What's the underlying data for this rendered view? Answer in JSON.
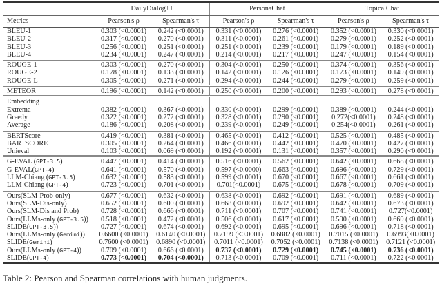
{
  "table": {
    "metrics_header": "Metrics",
    "datasets": [
      "DailyDialog++",
      "PersonaChat",
      "TopicalChat"
    ],
    "subheaders": [
      "Pearson's ρ",
      "Spearman's τ"
    ],
    "groups": [
      [
        {
          "label": [
            {
              "t": "BLEU-1"
            }
          ],
          "cells": [
            "0.303 (<0.0001)",
            "0.242 (<0.0001)",
            "0.331 (<0.0001)",
            "0.276 (<0.0001)",
            "0.352 (<0.0001)",
            "0.330 (<0.0001)"
          ]
        },
        {
          "label": [
            {
              "t": "BLEU-2"
            }
          ],
          "cells": [
            "0.317 (<0.0001)",
            "0.270 (<0.0001)",
            "0.311 (<0.0001)",
            "0.261 (<0.0001)",
            "0.279 (<0.0001)",
            "0.252 (<0.0001)"
          ]
        },
        {
          "label": [
            {
              "t": "BLEU-3"
            }
          ],
          "cells": [
            "0.256 (<0.0001)",
            "0.251 (<0.0001)",
            "0.251 (<0.0001)",
            "0.239 (<0.0001)",
            "0.179 (<0.0001)",
            "0.189 (<0.0001)"
          ]
        },
        {
          "label": [
            {
              "t": "BLEU-4"
            }
          ],
          "cells": [
            "0.234 (<0.0001)",
            "0.247 (<0.0001)",
            "0.214 (<0.0001)",
            "0.217 (<0.0001)",
            "0.247 (<0.0001)",
            "0.154 (<0.0001)"
          ]
        }
      ],
      [
        {
          "label": [
            {
              "t": "ROUGE-1"
            }
          ],
          "cells": [
            "0.303 (<0.0001)",
            "0.270 (<0.0001)",
            "0.304 (<0.0001)",
            "0.250 (<0.0001)",
            "0.374 (<0.0001)",
            "0.356 (<0.0001)"
          ]
        },
        {
          "label": [
            {
              "t": "ROUGE-2"
            }
          ],
          "cells": [
            "0.178 (<0.0001)",
            "0.133 (<0.0001)",
            "0.142 (<0.0001)",
            "0.126 (<0.0001)",
            "0.173 (<0.0001)",
            "0.149 (<0.0001)"
          ]
        },
        {
          "label": [
            {
              "t": "ROUGE-L"
            }
          ],
          "cells": [
            "0.305 (<0.0001)",
            "0.271 (<0.0001)",
            "0.294 (<0.0001)",
            "0.244 (<0.0001)",
            "0.279 (<0.0001)",
            "0.259 (<0.0001)"
          ]
        }
      ],
      [
        {
          "label": [
            {
              "t": "METEOR"
            }
          ],
          "cells": [
            "0.196 (<0.0001)",
            "0.142 (<0.0001)",
            "0.250 (<0.0001)",
            "0.200 (<0.0001)",
            "0.293 (<0.0001)",
            "0.278 (<0.0001)"
          ]
        }
      ],
      [
        {
          "label": [
            {
              "t": "Embedding"
            }
          ],
          "cells": [
            "",
            "",
            "",
            "",
            "",
            ""
          ]
        },
        {
          "label": [
            {
              "t": "Extrema"
            }
          ],
          "cells": [
            "0.382 (<0.0001)",
            "0.367 (<0.0001)",
            "0.330 (<0.0001)",
            "0.299 (<0.0001)",
            "0.389 (<0.0001)",
            "0.244 (<0.0001)"
          ]
        },
        {
          "label": [
            {
              "t": "Greedy"
            }
          ],
          "cells": [
            "0.322 (<0.0001)",
            "0.272 (<0.0001)",
            "0.328 (<0.0001)",
            "0.290 (<0.0001)",
            "0.272(<0.0001)",
            "0.248 (<0.0001)"
          ]
        },
        {
          "label": [
            {
              "t": "Average"
            }
          ],
          "cells": [
            "0.186 (<0.0001)",
            "0.208 (<0.0001)",
            "0.239 (<0.0001)",
            "0.249 (<0.0001)",
            "0.254(<0.0001)",
            "0.261 (<0.0001)"
          ]
        }
      ],
      [
        {
          "label": [
            {
              "t": "BERTScore"
            }
          ],
          "cells": [
            "0.419 (<0.0001)",
            "0.381 (<0.0001)",
            "0.465 (<0.0001)",
            "0.412 (<0.0001)",
            "0.525 (<0.0001)",
            "0.485 (<0.0001)"
          ]
        },
        {
          "label": [
            {
              "t": "BARTSCORE"
            }
          ],
          "cells": [
            "0.305 (<0.0001)",
            "0.264 (<0.0001)",
            "0.466 (<0.0001)",
            "0.442 (<0.0001)",
            "0.470 (<0.0001)",
            "0.427 (<0.0001)"
          ]
        },
        {
          "label": [
            {
              "t": "Unieval"
            }
          ],
          "cells": [
            "0.103 (<0.0001)",
            "0.069 (<0.0001)",
            "0.192 (<0.0001)",
            "0.131 (<0.0001)",
            "0.357 (<0.0001)",
            "0.290 (<0.0001)"
          ]
        }
      ],
      [
        {
          "label": [
            {
              "t": "G-EVAL ("
            },
            {
              "t": "GPT-3.5",
              "mono": true
            },
            {
              "t": ")"
            }
          ],
          "cells": [
            "0.447 (<0.0001)",
            "0.414 (<0.0001)",
            "0.516 (<0.0001)",
            "0.562 (<0.0001)",
            "0.642 (<0.0001)",
            "0.668 (<0.0001)"
          ]
        },
        {
          "label": [
            {
              "t": "G-EVAL("
            },
            {
              "t": "GPT-4",
              "mono": true
            },
            {
              "t": ")"
            }
          ],
          "cells": [
            "0.641 (<0.0001)",
            "0.570 (<0.0001)",
            "0.597 (<0.0000)",
            "0.663 (<0.0001)",
            "0.696 (<0.0001)",
            "0.729 (<0.0001)"
          ]
        },
        {
          "label": [
            {
              "t": "LLM-Chiang ("
            },
            {
              "t": "GPT-3.5",
              "mono": true
            },
            {
              "t": ")"
            }
          ],
          "cells": [
            "0.632 (<0.0001)",
            "0.583 (<0.0001)",
            "0.599 (<0.0001)",
            "0.670 (<0.0001)",
            "0.667 (<0.0001)",
            "0.661 (<0.0001)"
          ]
        },
        {
          "label": [
            {
              "t": "LLM-Chiang ("
            },
            {
              "t": "GPT-4",
              "mono": true
            },
            {
              "t": ")"
            }
          ],
          "cells": [
            "0.723 (<0.0001)",
            "0.701 (<0.0001)",
            "0.701(<0.0001)",
            "0.675 (<0.0001)",
            "0.678 (<0.0001)",
            "0.709 (<0.0001)"
          ]
        }
      ],
      [
        {
          "label": [
            {
              "t": "Ours(SLM-Prob-only)"
            }
          ],
          "cells": [
            "0.677 (<0.0001)",
            "0.632 (<0.0001)",
            "0.638 (<0.0001)",
            "0.692 (<0.0001)",
            "0.691 (<0.0001)",
            "0.689 (<0.0001)"
          ]
        },
        {
          "label": [
            {
              "t": "Ours(SLM-Dis-only)"
            }
          ],
          "cells": [
            "0.652 (<0.0001)",
            "0.600 (<0.0001)",
            "0.668 (<0.0001)",
            "0.692 (<0.0001)",
            "0.642 (<0.0001)",
            "0.673 (<0.0001)"
          ]
        },
        {
          "label": [
            {
              "t": "Ours(SLM-Dis and Prob)"
            }
          ],
          "cells": [
            "0.728 (<0.0001)",
            "0.666 (<0.0001)",
            "0.711 (<0.0001)",
            "0.707 (<0.0001)",
            "0.741 (<0.0001)",
            "0.727(<0.0001)"
          ]
        },
        {
          "label": [
            {
              "t": "Ours(LLMs-only ("
            },
            {
              "t": "GPT-3.5",
              "mono": true
            },
            {
              "t": "))"
            }
          ],
          "cells": [
            "0.518 (<0.0001)",
            "0.472 (<0.0001)",
            "0.506 (<0.0001)",
            "0.617 (<0.0001)",
            "0.590 (<0.0001)",
            "0.669 (<0.0001)"
          ]
        },
        {
          "label": [
            {
              "t": "SLIDE("
            },
            {
              "t": "GPT-3.5",
              "mono": true
            },
            {
              "t": "))"
            }
          ],
          "cells": [
            "0.727 (<0.0001)",
            "0.674 (<0.0001)",
            "0.692 (<0.0001)",
            "0.695 (<0.0001)",
            "0.696 (<0.0001)",
            "0.718 (<0.0001)"
          ]
        },
        {
          "label": [
            {
              "t": "Ours(LLMs-only ("
            },
            {
              "t": "Gemini",
              "mono": true
            },
            {
              "t": "))"
            }
          ],
          "cells": [
            "0.6600 (<0.0001)",
            "0.6140 (<0.0001)",
            "0.7199 (<0.0001)",
            "0.6882 (<0.0001)",
            "0.7015 (<0.0001)",
            "0.6993(<0.0001)"
          ]
        },
        {
          "label": [
            {
              "t": "SLIDE("
            },
            {
              "t": "Gemini",
              "mono": true
            },
            {
              "t": ")"
            }
          ],
          "cells": [
            "0.7600 (<0.0001)",
            "0.6890 (<0.0001)",
            "0.7011 (<0.0001)",
            "0.7052 (<0.0001)",
            "0.7138 (<0.0001)",
            "0.7121 (<0.0001)"
          ]
        },
        {
          "label": [
            {
              "t": "Ours(LLMs-only ("
            },
            {
              "t": "GPT-4",
              "mono": true
            },
            {
              "t": "))"
            }
          ],
          "cells": [
            "0.709 (<0.0001)",
            "0.666 (<0.0001)",
            "0.737 (<0.0001)",
            "0.729 (<0.0001)",
            "0.745 (<0.0001)",
            "0.736 (<0.0001)"
          ],
          "bold": [
            2,
            3,
            4,
            5
          ]
        },
        {
          "label": [
            {
              "t": "SLIDE("
            },
            {
              "t": "GPT-4",
              "mono": true
            },
            {
              "t": ")"
            }
          ],
          "cells": [
            "0.773 (<0.0001)",
            "0.704 (<0.0001)",
            "0.713 (<0.0001)",
            "0.709 (<0.0001)",
            "0.711 (<0.0001)",
            "0.722 (<0.0001)"
          ],
          "bold": [
            0,
            1
          ]
        }
      ]
    ]
  },
  "caption": "Table 2: Pearson and Spearman correlations with human judgments."
}
